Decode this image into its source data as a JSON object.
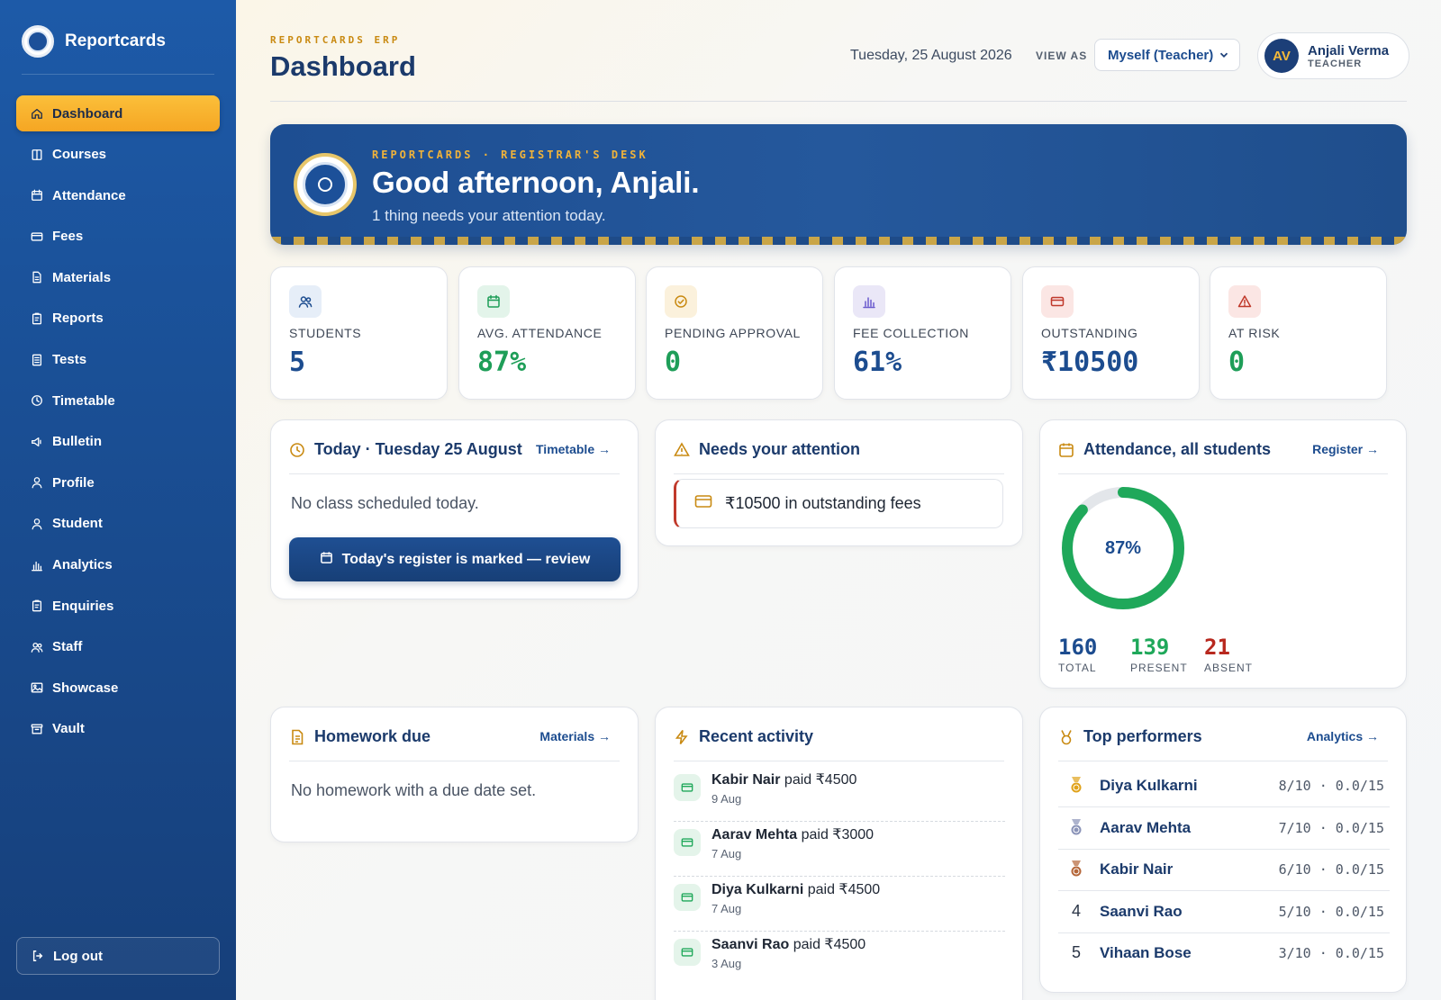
{
  "app": {
    "name": "Reportcards"
  },
  "sidebar": {
    "items": [
      {
        "label": "Dashboard",
        "icon": "home-icon",
        "active": true
      },
      {
        "label": "Courses",
        "icon": "book-icon"
      },
      {
        "label": "Attendance",
        "icon": "calendar-icon"
      },
      {
        "label": "Fees",
        "icon": "wallet-icon"
      },
      {
        "label": "Materials",
        "icon": "document-icon"
      },
      {
        "label": "Reports",
        "icon": "clipboard-icon"
      },
      {
        "label": "Tests",
        "icon": "test-sheet-icon"
      },
      {
        "label": "Timetable",
        "icon": "clock-icon"
      },
      {
        "label": "Bulletin",
        "icon": "megaphone-icon"
      },
      {
        "label": "Profile",
        "icon": "user-icon"
      },
      {
        "label": "Student",
        "icon": "user-icon"
      },
      {
        "label": "Analytics",
        "icon": "bar-chart-icon"
      },
      {
        "label": "Enquiries",
        "icon": "clipboard-icon"
      },
      {
        "label": "Staff",
        "icon": "users-icon"
      },
      {
        "label": "Showcase",
        "icon": "image-icon"
      },
      {
        "label": "Vault",
        "icon": "archive-icon"
      }
    ],
    "logout": "Log out"
  },
  "header": {
    "eyebrow": "REPORTCARDS ERP",
    "title": "Dashboard",
    "date": "Tuesday, 25 August 2026",
    "view_as_label": "VIEW AS",
    "view_as_value": "Myself (Teacher)",
    "user": {
      "initials": "AV",
      "name": "Anjali Verma",
      "role": "TEACHER"
    }
  },
  "banner": {
    "eyebrow": "REPORTCARDS · REGISTRAR'S DESK",
    "greeting": "Good afternoon, Anjali.",
    "subtitle": "1 thing needs your attention today."
  },
  "stats": [
    {
      "label": "STUDENTS",
      "value": "5",
      "color": "#1c4c8f",
      "icon": "users-icon",
      "icon_bg": "#e6eef8",
      "icon_color": "#1c4c8f"
    },
    {
      "label": "AVG. ATTENDANCE",
      "value": "87%",
      "color": "#1e9e58",
      "icon": "calendar-icon",
      "icon_bg": "#e3f4ea",
      "icon_color": "#1e9e58"
    },
    {
      "label": "PENDING APPROVAL",
      "value": "0",
      "color": "#1e9e58",
      "icon": "check-circle-icon",
      "icon_bg": "#fbf1dc",
      "icon_color": "#c98a12"
    },
    {
      "label": "FEE COLLECTION",
      "value": "61%",
      "color": "#1c4c8f",
      "icon": "bar-chart-icon",
      "icon_bg": "#eae7f7",
      "icon_color": "#6a5acd"
    },
    {
      "label": "OUTSTANDING",
      "value": "₹10500",
      "color": "#1c4c8f",
      "icon": "wallet-icon",
      "icon_bg": "#fbe6e4",
      "icon_color": "#c0392b"
    },
    {
      "label": "AT RISK",
      "value": "0",
      "color": "#1e9e58",
      "icon": "warning-icon",
      "icon_bg": "#fbe6e4",
      "icon_color": "#c0392b"
    }
  ],
  "today": {
    "title": "Today · Tuesday 25 August",
    "link": "Timetable →",
    "empty": "No class scheduled today.",
    "button": "Today's register is marked — review"
  },
  "attention": {
    "title": "Needs your attention",
    "items": [
      {
        "text": "₹10500 in outstanding fees"
      }
    ]
  },
  "attendance": {
    "title": "Attendance, all students",
    "link": "Register →",
    "percent": 87,
    "percent_label": "87%",
    "total": "160",
    "total_label": "TOTAL",
    "present": "139",
    "present_label": "PRESENT",
    "absent": "21",
    "absent_label": "ABSENT",
    "colors": {
      "present": "#1fa85a",
      "track": "#e3e6ea",
      "absent": "#b8281e",
      "total": "#1c4c8f"
    }
  },
  "homework": {
    "title": "Homework due",
    "link": "Materials →",
    "empty": "No homework with a due date set."
  },
  "activity": {
    "title": "Recent activity",
    "items": [
      {
        "name": "Kabir Nair",
        "text": "paid ₹4500",
        "date": "9 Aug"
      },
      {
        "name": "Aarav Mehta",
        "text": "paid ₹3000",
        "date": "7 Aug"
      },
      {
        "name": "Diya Kulkarni",
        "text": "paid ₹4500",
        "date": "7 Aug"
      },
      {
        "name": "Saanvi Rao",
        "text": "paid ₹4500",
        "date": "3 Aug"
      }
    ]
  },
  "performers": {
    "title": "Top performers",
    "link": "Analytics →",
    "items": [
      {
        "rank": "",
        "medal": "gold-medal-icon",
        "name": "Diya Kulkarni",
        "score": "8/10 · 0.0/15"
      },
      {
        "rank": "",
        "medal": "silver-medal-icon",
        "name": "Aarav Mehta",
        "score": "7/10 · 0.0/15"
      },
      {
        "rank": "",
        "medal": "bronze-medal-icon",
        "name": "Kabir Nair",
        "score": "6/10 · 0.0/15"
      },
      {
        "rank": "4",
        "name": "Saanvi Rao",
        "score": "5/10 · 0.0/15"
      },
      {
        "rank": "5",
        "name": "Vihaan Bose",
        "score": "3/10 · 0.0/15"
      }
    ]
  }
}
